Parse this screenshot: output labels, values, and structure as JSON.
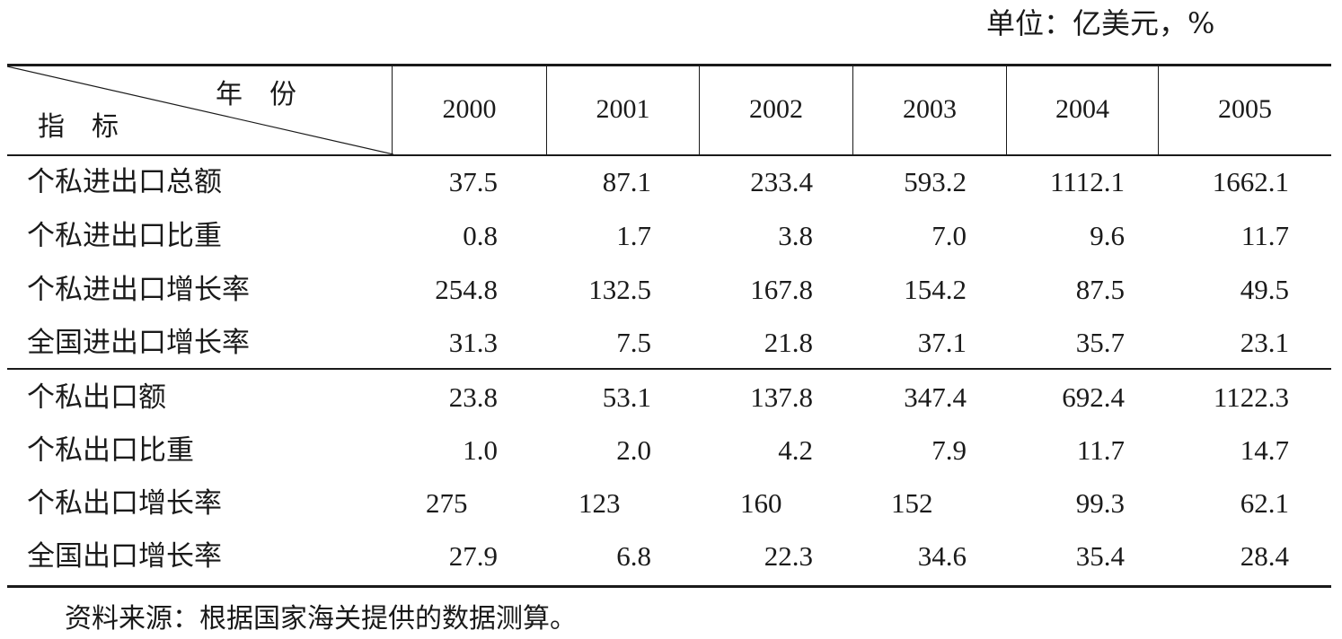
{
  "unit_note": "单位：亿美元，%",
  "header": {
    "corner_top": "年　份",
    "corner_bottom": "指　标",
    "years": [
      "2000",
      "2001",
      "2002",
      "2003",
      "2004",
      "2005"
    ]
  },
  "rows": [
    {
      "label": "个私进出口总额",
      "values": [
        "37.5",
        "87.1",
        "233.4",
        "593.2",
        "1112.1",
        "1662.1"
      ]
    },
    {
      "label": "个私进出口比重",
      "values": [
        "0.8",
        "1.7",
        "3.8",
        "7.0",
        "9.6",
        "11.7"
      ]
    },
    {
      "label": "个私进出口增长率",
      "values": [
        "254.8",
        "132.5",
        "167.8",
        "154.2",
        "87.5",
        "49.5"
      ]
    },
    {
      "label": "全国进出口增长率",
      "values": [
        "31.3",
        "7.5",
        "21.8",
        "37.1",
        "35.7",
        "23.1"
      ]
    },
    {
      "label": "个私出口额",
      "values": [
        "23.8",
        "53.1",
        "137.8",
        "347.4",
        "692.4",
        "1122.3"
      ]
    },
    {
      "label": "个私出口比重",
      "values": [
        "1.0",
        "2.0",
        "4.2",
        "7.9",
        "11.7",
        "14.7"
      ]
    },
    {
      "label": "个私出口增长率",
      "values": [
        "275",
        "123",
        "160",
        "152",
        "99.3",
        "62.1"
      ]
    },
    {
      "label": "全国出口增长率",
      "values": [
        "27.9",
        "6.8",
        "22.3",
        "34.6",
        "35.4",
        "28.4"
      ]
    }
  ],
  "source_note": "资料来源：根据国家海关提供的数据测算。"
}
